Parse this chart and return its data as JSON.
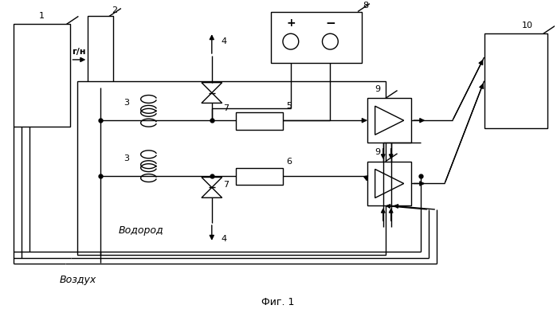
{
  "background_color": "#ffffff",
  "line_color": "#000000",
  "fig_caption": "Фиг. 1",
  "label_gn": "г/н",
  "label_vodorod": "Водород",
  "label_vozduh": "Воздух"
}
